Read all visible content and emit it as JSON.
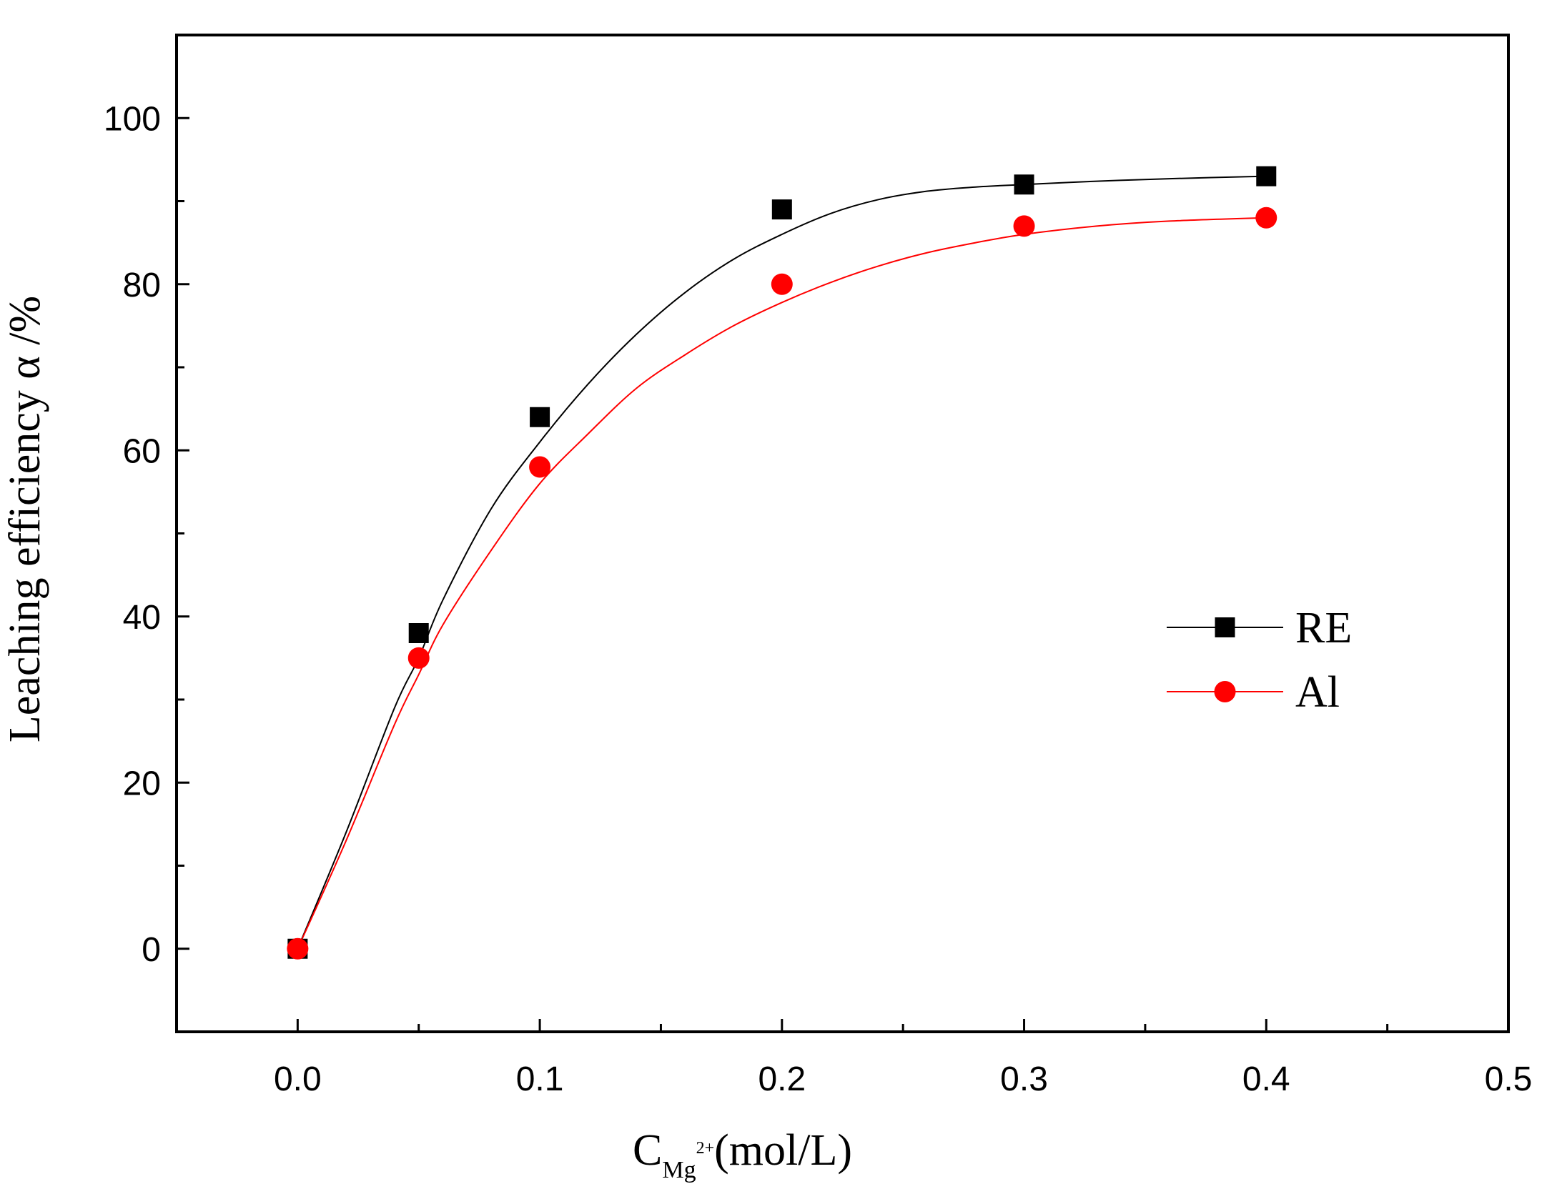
{
  "chart_data": {
    "type": "scatter",
    "title": "",
    "xlabel": {
      "main": "C",
      "sub": "Mg",
      "sup": "2+",
      "unit": "(mol/L)"
    },
    "ylabel": "Leaching efficiency α /%",
    "xlim": [
      -0.05,
      0.5
    ],
    "ylim": [
      -10,
      110
    ],
    "x_ticks": [
      0.0,
      0.1,
      0.2,
      0.3,
      0.4,
      0.5
    ],
    "x_tick_labels": [
      "0.0",
      "0.1",
      "0.2",
      "0.3",
      "0.4",
      "0.5"
    ],
    "x_minor_ticks": [
      -0.05,
      0.05,
      0.15,
      0.25,
      0.35,
      0.45
    ],
    "y_ticks": [
      0,
      20,
      40,
      60,
      80,
      100
    ],
    "y_tick_labels": [
      "0",
      "20",
      "40",
      "60",
      "80",
      "100"
    ],
    "grid": false,
    "legend_position": "center-right",
    "series": [
      {
        "name": "RE",
        "marker": "square",
        "color": "#000000",
        "x": [
          0.0,
          0.05,
          0.1,
          0.2,
          0.3,
          0.4
        ],
        "y": [
          0,
          38,
          64,
          89,
          92,
          93
        ],
        "fit_curve": {
          "x": [
            0.0,
            0.02,
            0.04,
            0.05,
            0.06,
            0.08,
            0.1,
            0.12,
            0.14,
            0.16,
            0.18,
            0.2,
            0.22,
            0.24,
            0.26,
            0.28,
            0.3,
            0.33,
            0.36,
            0.4
          ],
          "y": [
            0,
            14,
            29,
            35,
            42,
            53,
            61,
            68,
            74,
            79,
            83,
            86,
            88.5,
            90.2,
            91.2,
            91.7,
            92.0,
            92.4,
            92.7,
            93.0
          ]
        }
      },
      {
        "name": "Al",
        "marker": "circle",
        "color": "#ff0000",
        "x": [
          0.0,
          0.05,
          0.1,
          0.2,
          0.3,
          0.4
        ],
        "y": [
          0,
          35,
          58,
          80,
          87,
          88
        ],
        "fit_curve": {
          "x": [
            0.0,
            0.02,
            0.04,
            0.05,
            0.06,
            0.08,
            0.1,
            0.12,
            0.14,
            0.16,
            0.18,
            0.2,
            0.22,
            0.24,
            0.26,
            0.28,
            0.3,
            0.33,
            0.36,
            0.4
          ],
          "y": [
            0,
            13,
            27,
            33,
            39,
            48,
            56,
            62,
            67.5,
            71.5,
            75,
            77.8,
            80.2,
            82.2,
            83.8,
            85,
            86,
            87,
            87.6,
            88
          ]
        }
      }
    ]
  }
}
